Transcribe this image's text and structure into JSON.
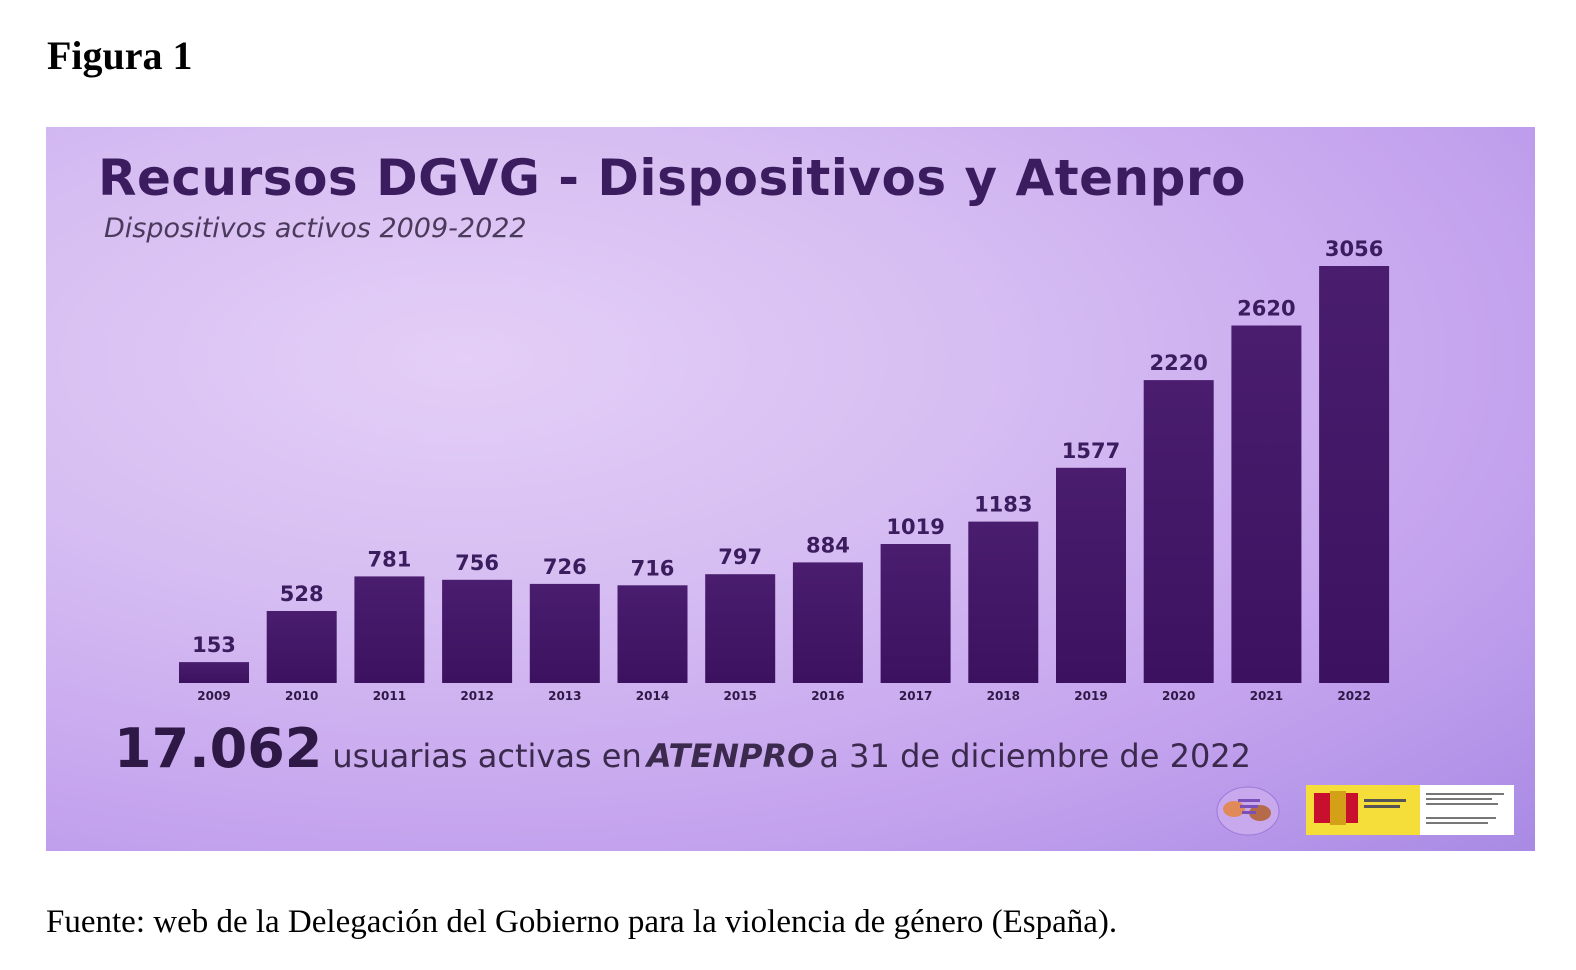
{
  "figure_label": "Figura 1",
  "caption": "Fuente: web de la Delegación del Gobierno para la violencia de género (España).",
  "summary": {
    "number": "17.062",
    "text": "usuarias activas en",
    "atenpro": "ATENPRO",
    "text2": "a 31 de diciembre de 2022"
  },
  "colors": {
    "bar": "#4a1d6e",
    "bar_dark": "#3c1260",
    "label": "#3b1c5e",
    "background_center": "#e4cff7",
    "background_edge": "#a98ae4"
  },
  "chart_data": {
    "type": "bar",
    "title": "Recursos DGVG - Dispositivos y Atenpro",
    "subtitle": "Dispositivos activos 2009-2022",
    "categories": [
      "2009",
      "2010",
      "2011",
      "2012",
      "2013",
      "2014",
      "2015",
      "2016",
      "2017",
      "2018",
      "2019",
      "2020",
      "2021",
      "2022"
    ],
    "values": [
      153,
      528,
      781,
      756,
      726,
      716,
      797,
      884,
      1019,
      1183,
      1577,
      2220,
      2620,
      3056
    ],
    "data_labels": [
      "153",
      "528",
      "781",
      "756",
      "726",
      "716",
      "797",
      "884",
      "1019",
      "1183",
      "1577",
      "2220",
      "2620",
      "3056"
    ],
    "xlabel": "",
    "ylabel": "",
    "ylim": [
      0,
      3056
    ],
    "grid": false,
    "legend": "none"
  }
}
